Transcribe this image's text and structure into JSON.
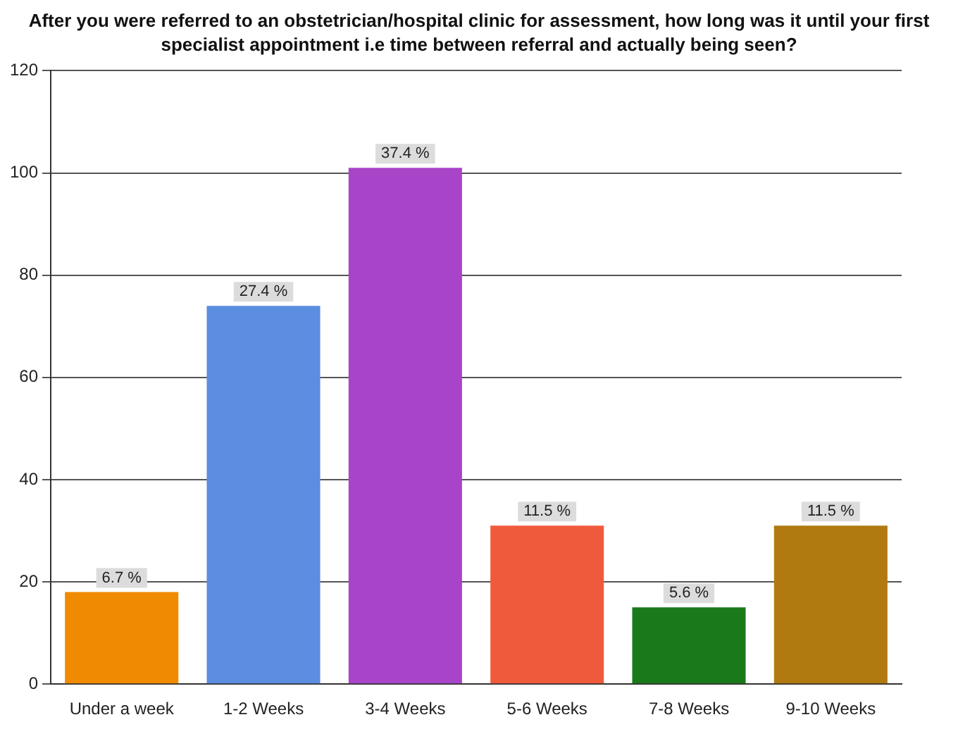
{
  "chart_data": {
    "type": "bar",
    "title": "After you were referred to an obstetrician/hospital clinic for assessment, how long was it until your first specialist appointment i.e time between referral and actually being seen?",
    "categories": [
      "Under a week",
      "1-2 Weeks",
      "3-4 Weeks",
      "5-6 Weeks",
      "7-8 Weeks",
      "9-10 Weeks"
    ],
    "values": [
      18,
      74,
      101,
      31,
      15,
      31
    ],
    "colors": [
      "#f08a00",
      "#5b8de0",
      "#a844c8",
      "#f05a3c",
      "#1a7a1a",
      "#b07a10"
    ],
    "annotations": [
      {
        "text": "6.7 %",
        "x": "Under a week",
        "y": 18
      },
      {
        "text": "27.4 %",
        "x": "1-2 Weeks",
        "y": 74
      },
      {
        "text": "37.4 %",
        "x": "3-4 Weeks",
        "y": 101
      },
      {
        "text": "11.5 %",
        "x": "5-6 Weeks",
        "y": 31
      },
      {
        "text": "5.6 %",
        "x": "7-8 Weeks",
        "y": 15
      },
      {
        "text": "11.5 %",
        "x": "9-10 Weeks",
        "y": 31
      }
    ],
    "ylim": [
      0,
      120
    ],
    "yticks": [
      0,
      20,
      40,
      60,
      80,
      100,
      120
    ],
    "grid": "y"
  }
}
